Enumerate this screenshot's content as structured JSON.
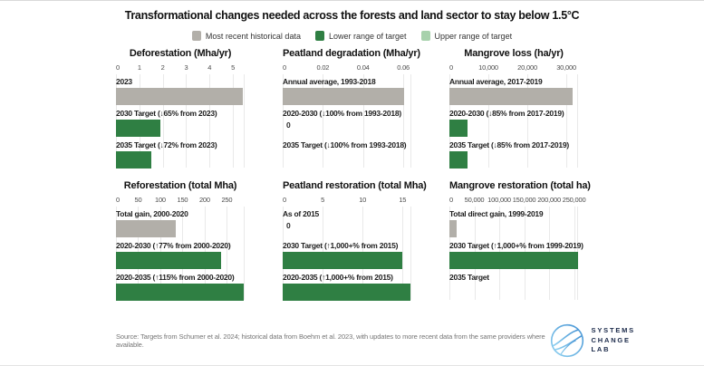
{
  "title": "Transformational changes needed across the forests and land sector to stay below 1.5°C",
  "colors": {
    "historical": "#b2afa9",
    "target_lower": "#2f7f43",
    "target_upper": "#a7d1ac",
    "gridline": "#e9e9e9",
    "logo_blue": "#5aa9dd",
    "logo_navy": "#1b2a4a"
  },
  "legend": [
    {
      "label": "Most recent historical data",
      "series": "historical"
    },
    {
      "label": "Lower range of target",
      "series": "target_lower"
    },
    {
      "label": "Upper range of target",
      "series": "target_upper"
    }
  ],
  "chart_data": [
    {
      "type": "bar",
      "orientation": "horizontal",
      "title": "Deforestation (Mha/yr)",
      "axis_max": 5.5,
      "ticks": [
        {
          "v": 0,
          "label": "0"
        },
        {
          "v": 1,
          "label": "1"
        },
        {
          "v": 2,
          "label": "2"
        },
        {
          "v": 3,
          "label": "3"
        },
        {
          "v": 4,
          "label": "4"
        },
        {
          "v": 5,
          "label": "5"
        }
      ],
      "bars": [
        {
          "label": "2023",
          "series": "historical",
          "value": 5.42
        },
        {
          "label": "2030 Target (↓65% from 2023)",
          "series": "target_lower",
          "value": 1.9
        },
        {
          "label": "2035 Target (↓72% from 2023)",
          "series": "target_lower",
          "value": 1.52
        }
      ]
    },
    {
      "type": "bar",
      "orientation": "horizontal",
      "title": "Peatland degradation (Mha/yr)",
      "axis_max": 0.064,
      "ticks": [
        {
          "v": 0,
          "label": "0"
        },
        {
          "v": 0.02,
          "label": "0.02"
        },
        {
          "v": 0.04,
          "label": "0.04"
        },
        {
          "v": 0.06,
          "label": "0.06"
        }
      ],
      "bars": [
        {
          "label": "Annual average, 1993-2018",
          "series": "historical",
          "value": 0.0605
        },
        {
          "label": "2020-2030 (↓100% from 1993-2018)",
          "series": "target_lower",
          "value": 0,
          "zero_label": "0"
        },
        {
          "label": "2035 Target (↓100% from 1993-2018)",
          "series": "target_lower",
          "value": 0
        }
      ]
    },
    {
      "type": "bar",
      "orientation": "horizontal",
      "title": "Mangrove loss (ha/yr)",
      "axis_max": 33000,
      "ticks": [
        {
          "v": 0,
          "label": "0"
        },
        {
          "v": 10000,
          "label": "10,000"
        },
        {
          "v": 20000,
          "label": "20,000"
        },
        {
          "v": 30000,
          "label": "30,000"
        }
      ],
      "bars": [
        {
          "label": "Annual average, 2017-2019",
          "series": "historical",
          "value": 31500
        },
        {
          "label": "2020-2030 (↓85% from 2017-2019)",
          "series": "target_lower",
          "value": 4700
        },
        {
          "label": "2035 Target (↓85% from 2017-2019)",
          "series": "target_lower",
          "value": 4700
        }
      ]
    },
    {
      "type": "bar",
      "orientation": "horizontal",
      "title": "Reforestation (total Mha)",
      "axis_max": 290,
      "ticks": [
        {
          "v": 0,
          "label": "0"
        },
        {
          "v": 50,
          "label": "50"
        },
        {
          "v": 100,
          "label": "100"
        },
        {
          "v": 150,
          "label": "150"
        },
        {
          "v": 200,
          "label": "200"
        },
        {
          "v": 250,
          "label": "250"
        }
      ],
      "bars": [
        {
          "label": "Total gain, 2000-2020",
          "series": "historical",
          "value": 134
        },
        {
          "label": "2020-2030 (↑77% from 2000-2020)",
          "series": "target_lower",
          "value": 237
        },
        {
          "label": "2020-2035 (↑115% from 2000-2020)",
          "series": "target_lower",
          "value": 288
        }
      ]
    },
    {
      "type": "bar",
      "orientation": "horizontal",
      "title": "Peatland restoration (total Mha)",
      "axis_max": 16.1,
      "ticks": [
        {
          "v": 0,
          "label": "0"
        },
        {
          "v": 5,
          "label": "5"
        },
        {
          "v": 10,
          "label": "10"
        },
        {
          "v": 15,
          "label": "15"
        }
      ],
      "bars": [
        {
          "label": "As of 2015",
          "series": "historical",
          "value": 0,
          "zero_label": "0"
        },
        {
          "label": "2030 Target (↑1,000+% from 2015)",
          "series": "target_lower",
          "value": 15
        },
        {
          "label": "2020-2035 (↑1,000+% from 2015)",
          "series": "target_lower",
          "value": 16
        }
      ]
    },
    {
      "type": "bar",
      "orientation": "horizontal",
      "title": "Mangrove restoration (total ha)",
      "axis_max": 258000,
      "ticks": [
        {
          "v": 0,
          "label": "0"
        },
        {
          "v": 50000,
          "label": "50,000"
        },
        {
          "v": 100000,
          "label": "100,000"
        },
        {
          "v": 150000,
          "label": "150,000"
        },
        {
          "v": 200000,
          "label": "200,000"
        },
        {
          "v": 250000,
          "label": "250,000"
        }
      ],
      "bars": [
        {
          "label": "Total direct gain, 1999-2019",
          "series": "historical",
          "value": 14000
        },
        {
          "label": "2030 Target (↑1,000+% from 1999-2019)",
          "series": "target_lower",
          "value": 258000
        },
        {
          "label": "2035 Target",
          "series": "target_lower",
          "value": null
        }
      ]
    }
  ],
  "footer": {
    "source": "Source: Targets from Schumer et al. 2024; historical data from Boehm et al. 2023, with updates to more recent data from the same providers where available."
  },
  "logo": {
    "lines": [
      "SYSTEMS",
      "CHANGE",
      "LAB"
    ]
  }
}
